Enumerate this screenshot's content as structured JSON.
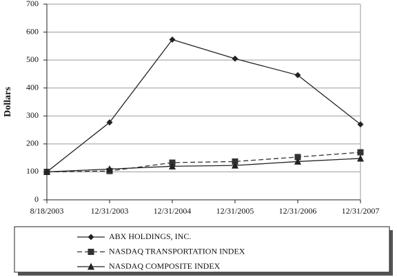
{
  "chart_data": {
    "type": "line",
    "categories": [
      "8/18/2003",
      "12/31/2003",
      "12/31/2004",
      "12/31/2005",
      "12/31/2006",
      "12/31/2007"
    ],
    "y_label": "Dollars",
    "ylim": [
      0,
      700
    ],
    "yticks": [
      0,
      100,
      200,
      300,
      400,
      500,
      600,
      700
    ],
    "grid": true,
    "series": [
      {
        "name": "ABX HOLDINGS, INC.",
        "color": "#222222",
        "marker": "diamond",
        "dash": false,
        "values": [
          100,
          277,
          573,
          505,
          446,
          270
        ]
      },
      {
        "name": "NASDAQ TRANSPORTATION INDEX",
        "color": "#333333",
        "marker": "square",
        "dash": true,
        "values": [
          100,
          103,
          133,
          137,
          153,
          170
        ]
      },
      {
        "name": "NASDAQ COMPOSITE INDEX",
        "color": "#222222",
        "marker": "triangle",
        "dash": false,
        "values": [
          100,
          110,
          120,
          123,
          137,
          148
        ]
      }
    ]
  }
}
